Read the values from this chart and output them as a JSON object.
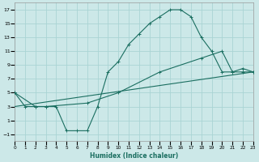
{
  "xlabel": "Humidex (Indice chaleur)",
  "background_color": "#cce8e8",
  "grid_color": "#aad4d4",
  "line_color": "#1a6e60",
  "xlim": [
    0,
    23
  ],
  "ylim": [
    -2,
    18
  ],
  "xticks": [
    0,
    1,
    2,
    3,
    4,
    5,
    6,
    7,
    8,
    9,
    10,
    11,
    12,
    13,
    14,
    15,
    16,
    17,
    18,
    19,
    20,
    21,
    22,
    23
  ],
  "yticks": [
    -1,
    1,
    3,
    5,
    7,
    9,
    11,
    13,
    15,
    17
  ],
  "line1_x": [
    0,
    1,
    2,
    3,
    4,
    5,
    6,
    7,
    8,
    9,
    10,
    11,
    12,
    13,
    14,
    15,
    16,
    17,
    18,
    19,
    20,
    21,
    22,
    23
  ],
  "line1_y": [
    5,
    3,
    3,
    3,
    3,
    -0.5,
    -0.5,
    -0.5,
    3,
    8,
    9.5,
    12,
    13.5,
    15,
    16,
    17,
    17,
    16,
    13,
    11,
    8,
    8,
    8,
    8
  ],
  "line2_x": [
    0,
    2,
    3,
    7,
    10,
    14,
    18,
    20,
    21,
    22,
    23
  ],
  "line2_y": [
    5,
    3,
    3,
    3.5,
    5,
    8,
    10,
    11,
    8,
    8.5,
    8
  ],
  "line3_x": [
    0,
    23
  ],
  "line3_y": [
    3,
    8
  ]
}
